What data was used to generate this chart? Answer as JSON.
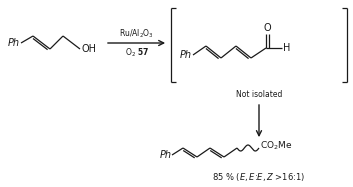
{
  "bg_color": "#ffffff",
  "line_color": "#1a1a1a",
  "fig_width": 3.53,
  "fig_height": 1.87,
  "dpi": 100,
  "arrow_label_top": "Ru/Al$_2$O$_3$",
  "arrow_label_bottom": "O$_2$ $\\mathbf{57}$",
  "not_isolated": "Not isolated",
  "yield_text": "85 % ($\\it{E,E}$:$\\it{E,Z}$ >16:1)",
  "label_ph_left": "Ph",
  "label_oh": "OH",
  "label_ph_mid": "Ph",
  "label_h_aldehyde": "H",
  "label_ph_bottom": "Ph",
  "label_co2me": "CO$_2$Me",
  "font_size_label": 7,
  "font_size_arrow": 5.5,
  "font_size_yield": 6.0
}
